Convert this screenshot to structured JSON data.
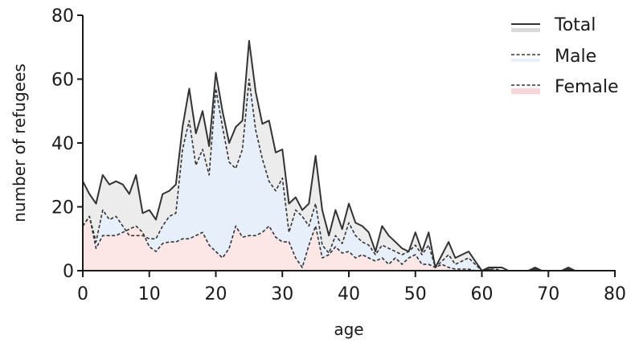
{
  "chart_data": {
    "type": "area",
    "title": "",
    "xlabel": "age",
    "ylabel": "number of refugees",
    "xlim": [
      0,
      80
    ],
    "ylim": [
      0,
      80
    ],
    "xticks": [
      0,
      10,
      20,
      30,
      40,
      50,
      60,
      70,
      80
    ],
    "yticks": [
      0,
      20,
      40,
      60,
      80
    ],
    "grid": false,
    "legend_position": "upper right",
    "x": [
      0,
      1,
      2,
      3,
      4,
      5,
      6,
      7,
      8,
      9,
      10,
      11,
      12,
      13,
      14,
      15,
      16,
      17,
      18,
      19,
      20,
      21,
      22,
      23,
      24,
      25,
      26,
      27,
      28,
      29,
      30,
      31,
      32,
      33,
      34,
      35,
      36,
      37,
      38,
      39,
      40,
      41,
      42,
      43,
      44,
      45,
      46,
      47,
      48,
      49,
      50,
      51,
      52,
      53,
      54,
      55,
      56,
      57,
      58,
      59,
      60,
      61,
      62,
      63,
      64,
      65,
      66,
      67,
      68,
      69,
      70,
      71,
      72,
      73,
      74,
      75,
      76,
      77,
      78,
      79,
      80
    ],
    "series": [
      {
        "name": "Total",
        "line": "solid",
        "fill": "#ececec",
        "values": [
          28,
          24,
          21,
          30,
          27,
          28,
          27,
          24,
          30,
          18,
          19,
          16,
          24,
          25,
          27,
          45,
          57,
          43,
          50,
          39,
          62,
          50,
          40,
          45,
          47,
          72,
          56,
          46,
          47,
          37,
          38,
          21,
          23,
          19,
          21,
          36,
          19,
          11,
          19,
          13,
          21,
          15,
          14,
          12,
          6,
          14,
          11,
          9,
          7,
          6,
          12,
          6,
          12,
          1,
          5,
          9,
          4,
          5,
          6,
          3,
          0,
          1,
          1,
          1,
          0,
          0,
          0,
          0,
          1,
          0,
          0,
          0,
          0,
          1,
          0,
          0,
          0,
          0,
          0,
          0,
          0
        ]
      },
      {
        "name": "Male",
        "line": "dashed",
        "fill": "#e6effa",
        "values": [
          14,
          17,
          9,
          19,
          16,
          17,
          14,
          11,
          11,
          11,
          10,
          10,
          14,
          17,
          18,
          38,
          47,
          33,
          38,
          30,
          57,
          45,
          34,
          32,
          38,
          60,
          44,
          35,
          28,
          25,
          29,
          12,
          19,
          17,
          14,
          21,
          8,
          5.5,
          11,
          8.5,
          15,
          11,
          9,
          8,
          5,
          8,
          7,
          6,
          5,
          6,
          8,
          5,
          8,
          1,
          3,
          5,
          2,
          3,
          4,
          2,
          0,
          0.5,
          0.5,
          0,
          0,
          0,
          0,
          0,
          0.5,
          0,
          0,
          0,
          0,
          0.5,
          0,
          0,
          0,
          0,
          0,
          0,
          0
        ]
      },
      {
        "name": "Female",
        "line": "dashed",
        "fill": "#fce6e6",
        "values": [
          14,
          17,
          7,
          11,
          11,
          11,
          12,
          13,
          14,
          12,
          7.5,
          6,
          8.5,
          9,
          9,
          10,
          10,
          11,
          12,
          8,
          6,
          4,
          7,
          14,
          10.5,
          11,
          11,
          12,
          14,
          10.5,
          9,
          9,
          4,
          1,
          8,
          14,
          4,
          5,
          7.5,
          5.5,
          6,
          4,
          5,
          4,
          3,
          4,
          2,
          4,
          2,
          4,
          5,
          2,
          2,
          1,
          2,
          1,
          0.5,
          0.5,
          0.5,
          0,
          0,
          0.5,
          0,
          0,
          0,
          0,
          0,
          0,
          0.5,
          0,
          0,
          0,
          0,
          0.5,
          0,
          0,
          0,
          0,
          0,
          0,
          0
        ]
      }
    ],
    "colors": {
      "line": "#333333",
      "total_fill": "#ececec",
      "male_fill": "#e6effa",
      "female_fill": "#fce6e6",
      "axis": "#1a1a1a"
    }
  },
  "legend": {
    "items": [
      {
        "label": "Total",
        "style": "solid"
      },
      {
        "label": "Male",
        "style": "dashed"
      },
      {
        "label": "Female",
        "style": "dashed"
      }
    ]
  },
  "axes": {
    "x_title": "age",
    "y_title": "number of refugees"
  }
}
